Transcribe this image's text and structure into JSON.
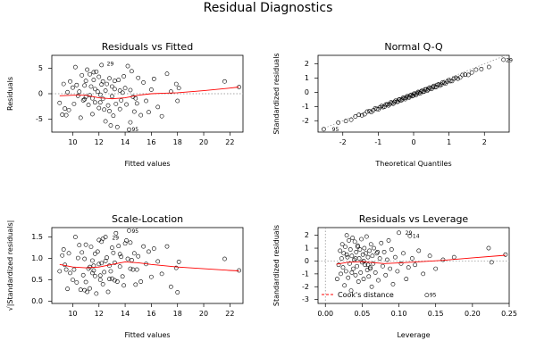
{
  "figure": {
    "title": "Residual Diagnostics"
  },
  "chart_data": [
    {
      "type": "scatter",
      "title": "Residuals vs Fitted",
      "xlabel": "Fitted values",
      "ylabel": "Residuals",
      "xlim": [
        8.4,
        23.0
      ],
      "ylim": [
        -7.5,
        7.5
      ],
      "xticks": [
        10,
        12,
        14,
        16,
        18,
        20,
        22
      ],
      "yticks": [
        -5,
        0,
        5
      ],
      "reference_line": {
        "y": 0,
        "style": "dotted"
      },
      "smooth_line": {
        "color": "#ff0000",
        "x": [
          9,
          10,
          11,
          12,
          13,
          14,
          15,
          16,
          17,
          18,
          20,
          22,
          22.7
        ],
        "y": [
          -0.4,
          -0.3,
          -0.3,
          -0.8,
          -1.0,
          -0.8,
          -0.3,
          0.0,
          0.1,
          0.2,
          0.6,
          1.1,
          1.3
        ]
      },
      "point_labels": [
        {
          "text": "29",
          "x": 12.4,
          "y": 5.8
        },
        {
          "text": "95",
          "x": 14.3,
          "y": -7.0
        }
      ],
      "x": [
        9.0,
        9.2,
        9.3,
        9.5,
        9.6,
        9.7,
        9.8,
        10.0,
        10.1,
        10.2,
        10.3,
        10.5,
        10.6,
        10.7,
        10.8,
        10.9,
        11.0,
        11.0,
        11.1,
        11.2,
        11.3,
        11.3,
        11.4,
        11.5,
        11.5,
        11.6,
        11.7,
        11.7,
        11.8,
        11.9,
        12.0,
        12.0,
        12.1,
        12.2,
        12.2,
        12.3,
        12.3,
        12.4,
        12.5,
        12.5,
        12.6,
        12.7,
        12.8,
        12.9,
        13.0,
        13.0,
        13.1,
        13.2,
        13.3,
        13.4,
        13.5,
        13.6,
        13.7,
        13.8,
        13.9,
        14.0,
        14.1,
        14.2,
        14.3,
        14.4,
        14.5,
        14.6,
        14.7,
        14.8,
        15.0,
        15.2,
        15.4,
        15.6,
        15.8,
        16.0,
        16.2,
        16.5,
        16.8,
        17.2,
        17.5,
        17.9,
        18.0,
        18.1,
        21.6,
        22.7,
        10.4,
        11.6,
        12.8,
        13.6,
        14.9,
        9.4,
        10.9,
        12.1,
        13.2,
        14.4
      ],
      "y": [
        -1.8,
        -4.1,
        1.9,
        -4.2,
        0.3,
        -3.2,
        2.4,
        1.2,
        -2.0,
        5.2,
        1.7,
        0.4,
        -4.7,
        3.6,
        -1.3,
        1.6,
        2.5,
        -0.6,
        4.7,
        -2.2,
        -0.3,
        3.8,
        1.4,
        -4.0,
        -0.9,
        2.7,
        0.9,
        -1.7,
        4.3,
        0.4,
        -2.8,
        3.3,
        -0.2,
        1.8,
        5.6,
        -1.0,
        2.4,
        -3.1,
        0.6,
        -5.4,
        1.9,
        -2.3,
        3.0,
        -6.2,
        -0.5,
        1.4,
        -4.3,
        0.9,
        -2.0,
        -6.5,
        2.7,
        -3.0,
        -1.3,
        0.2,
        3.4,
        1.1,
        -2.1,
        5.4,
        -7.0,
        -5.6,
        4.4,
        -0.6,
        -3.5,
        -0.9,
        3.1,
        -4.2,
        2.2,
        -1.4,
        -3.6,
        0.8,
        2.9,
        -2.6,
        -4.4,
        3.9,
        0.4,
        1.9,
        -1.4,
        1.1,
        2.4,
        1.3,
        -0.4,
        4.2,
        -3.4,
        0.6,
        -1.9,
        -2.9,
        -1.1,
        -1.7,
        2.5,
        0.7
      ]
    },
    {
      "type": "scatter",
      "title": "Normal Q-Q",
      "xlabel": "Theoretical Quantiles",
      "ylabel": "Standardized residuals",
      "xlim": [
        -2.7,
        2.7
      ],
      "ylim": [
        -2.8,
        2.6
      ],
      "xticks": [
        -2,
        -1,
        0,
        1,
        2
      ],
      "yticks": [
        -2,
        -1,
        0,
        1,
        2
      ],
      "reference_line": {
        "style": "dotted",
        "x": [
          -2.6,
          2.6
        ],
        "y": [
          -2.6,
          2.6
        ]
      },
      "point_labels": [
        {
          "text": "29",
          "x": 2.53,
          "y": 2.25
        },
        {
          "text": "95",
          "x": -2.38,
          "y": -2.62
        }
      ],
      "n_points": 90,
      "y_min": -2.6,
      "y_max": 2.25
    },
    {
      "type": "scatter",
      "title": "Scale-Location",
      "xlabel": "Fitted values",
      "ylabel": "√|Standardized residuals|",
      "xlim": [
        8.4,
        23.0
      ],
      "ylim": [
        -0.05,
        1.72
      ],
      "xticks": [
        10,
        12,
        14,
        16,
        18,
        20,
        22
      ],
      "yticks": [
        0.0,
        0.5,
        1.0,
        1.5
      ],
      "ytick_labels": [
        "0.0",
        "0.5",
        "1.0",
        "1.5"
      ],
      "smooth_line": {
        "color": "#ff0000",
        "x": [
          9,
          10,
          11,
          12,
          13,
          14,
          15,
          16,
          18,
          20,
          22,
          22.7
        ],
        "y": [
          0.86,
          0.8,
          0.78,
          0.8,
          0.86,
          0.92,
          0.9,
          0.86,
          0.8,
          0.76,
          0.72,
          0.71
        ]
      },
      "point_labels": [
        {
          "text": "29",
          "x": 12.8,
          "y": 1.48
        },
        {
          "text": "95",
          "x": 14.3,
          "y": 1.64
        }
      ],
      "x": [
        9.0,
        9.2,
        9.3,
        9.5,
        9.6,
        9.7,
        9.8,
        10.0,
        10.1,
        10.2,
        10.3,
        10.5,
        10.6,
        10.7,
        10.8,
        10.9,
        11.0,
        11.0,
        11.1,
        11.2,
        11.3,
        11.3,
        11.4,
        11.5,
        11.5,
        11.6,
        11.7,
        11.7,
        11.8,
        11.9,
        12.0,
        12.0,
        12.1,
        12.2,
        12.2,
        12.3,
        12.3,
        12.4,
        12.5,
        12.5,
        12.6,
        12.7,
        12.8,
        12.9,
        13.0,
        13.0,
        13.1,
        13.2,
        13.3,
        13.4,
        13.5,
        13.6,
        13.7,
        13.8,
        13.9,
        14.0,
        14.1,
        14.2,
        14.3,
        14.4,
        14.5,
        14.6,
        14.7,
        14.8,
        15.0,
        15.2,
        15.4,
        15.6,
        15.8,
        16.0,
        16.2,
        16.5,
        16.8,
        17.2,
        17.5,
        17.9,
        18.0,
        18.1,
        21.6,
        22.7,
        10.4,
        11.6,
        12.8,
        13.6,
        14.9,
        9.4,
        10.9,
        12.1,
        13.2,
        14.4
      ],
      "y": [
        0.7,
        1.07,
        1.21,
        0.74,
        0.29,
        1.12,
        0.66,
        0.5,
        0.74,
        1.5,
        0.44,
        1.31,
        0.27,
        1.14,
        0.61,
        0.99,
        0.45,
        1.32,
        0.22,
        0.76,
        0.8,
        0.3,
        1.27,
        0.66,
        0.95,
        0.83,
        0.59,
        1.11,
        0.18,
        1.16,
        0.87,
        1.43,
        0.5,
        1.39,
        0.89,
        0.4,
        1.46,
        0.68,
        0.94,
        1.5,
        1.02,
        0.22,
        0.83,
        0.7,
        1.25,
        0.53,
        1.13,
        0.9,
        1.59,
        0.46,
        1.29,
        0.81,
        1.04,
        0.58,
        0.37,
        1.35,
        1.42,
        0.99,
        1.65,
        1.37,
        0.96,
        0.74,
        1.12,
        0.39,
        1.05,
        0.46,
        1.28,
        0.87,
        1.16,
        0.57,
        1.23,
        0.93,
        0.64,
        1.28,
        0.34,
        0.78,
        0.21,
        0.92,
        0.99,
        0.72,
        1.01,
        0.72,
        0.52,
        1.1,
        0.74,
        0.85,
        0.26,
        0.6,
        0.49,
        0.76
      ]
    },
    {
      "type": "scatter",
      "title": "Residuals vs Leverage",
      "xlabel": "Leverage",
      "ylabel": "Standardized residuals",
      "xlim": [
        -0.01,
        0.25
      ],
      "ylim": [
        -3.3,
        2.6
      ],
      "xticks": [
        0.0,
        0.05,
        0.1,
        0.15,
        0.2,
        0.25
      ],
      "xtick_labels": [
        "0.00",
        "0.05",
        "0.10",
        "0.15",
        "0.20",
        "0.25"
      ],
      "yticks": [
        -3,
        -2,
        -1,
        0,
        1,
        2
      ],
      "reference_line": {
        "y": 0,
        "x": 0,
        "style": "dotted"
      },
      "smooth_line": {
        "color": "#ff0000",
        "x": [
          0.015,
          0.03,
          0.05,
          0.08,
          0.1,
          0.13,
          0.16,
          0.2,
          0.245
        ],
        "y": [
          -0.25,
          -0.1,
          -0.05,
          -0.2,
          -0.15,
          -0.05,
          0.05,
          0.25,
          0.45
        ]
      },
      "legend": {
        "position": "bottom-left",
        "items": [
          {
            "label": "Cook's distance",
            "color": "#ff0000",
            "style": "dashed"
          }
        ]
      },
      "point_labels": [
        {
          "text": "29",
          "x": 0.105,
          "y": 2.2
        },
        {
          "text": "14",
          "x": 0.115,
          "y": 1.95
        },
        {
          "text": "95",
          "x": 0.138,
          "y": -2.65
        }
      ],
      "x": [
        0.016,
        0.018,
        0.02,
        0.021,
        0.022,
        0.023,
        0.024,
        0.025,
        0.026,
        0.027,
        0.028,
        0.029,
        0.03,
        0.031,
        0.032,
        0.033,
        0.034,
        0.035,
        0.036,
        0.037,
        0.038,
        0.039,
        0.04,
        0.041,
        0.042,
        0.043,
        0.044,
        0.045,
        0.046,
        0.047,
        0.048,
        0.049,
        0.05,
        0.051,
        0.052,
        0.053,
        0.054,
        0.055,
        0.056,
        0.057,
        0.058,
        0.059,
        0.06,
        0.061,
        0.062,
        0.063,
        0.064,
        0.065,
        0.066,
        0.068,
        0.07,
        0.072,
        0.074,
        0.076,
        0.078,
        0.08,
        0.082,
        0.084,
        0.086,
        0.088,
        0.09,
        0.092,
        0.095,
        0.098,
        0.1,
        0.103,
        0.106,
        0.11,
        0.113,
        0.115,
        0.118,
        0.122,
        0.127,
        0.133,
        0.138,
        0.142,
        0.15,
        0.16,
        0.175,
        0.222,
        0.226,
        0.245,
        0.036,
        0.044,
        0.052,
        0.061,
        0.029,
        0.041,
        0.058,
        0.071
      ],
      "y": [
        -1.4,
        -0.3,
        0.8,
        -1.0,
        0.2,
        1.3,
        -0.5,
        0.6,
        -1.9,
        1.1,
        -0.8,
        2.0,
        0.3,
        -1.3,
        1.6,
        -0.2,
        0.9,
        -2.3,
        0.4,
        1.8,
        -0.6,
        0.1,
        1.5,
        -1.1,
        0.7,
        -0.4,
        1.2,
        -1.6,
        0.2,
        0.9,
        -0.9,
        1.7,
        -0.1,
        0.5,
        -1.4,
        1.0,
        -0.3,
        0.6,
        1.9,
        -0.7,
        0.3,
        -1.2,
        0.8,
        -0.5,
        1.3,
        -2.0,
        0.4,
        -0.2,
        1.0,
        -0.9,
        0.6,
        -1.5,
        0.2,
        1.4,
        -0.4,
        0.7,
        -1.1,
        0.1,
        1.6,
        -0.6,
        0.9,
        -1.8,
        0.3,
        -0.8,
        2.2,
        -0.2,
        0.6,
        -1.4,
        -0.5,
        1.95,
        0.2,
        -0.3,
        0.8,
        -1.0,
        -2.65,
        0.4,
        -0.6,
        0.1,
        0.3,
        1.0,
        -0.1,
        0.5,
        -0.9,
        1.1,
        0.0,
        -0.6,
        0.5,
        0.2,
        -0.3,
        0.7
      ]
    }
  ]
}
